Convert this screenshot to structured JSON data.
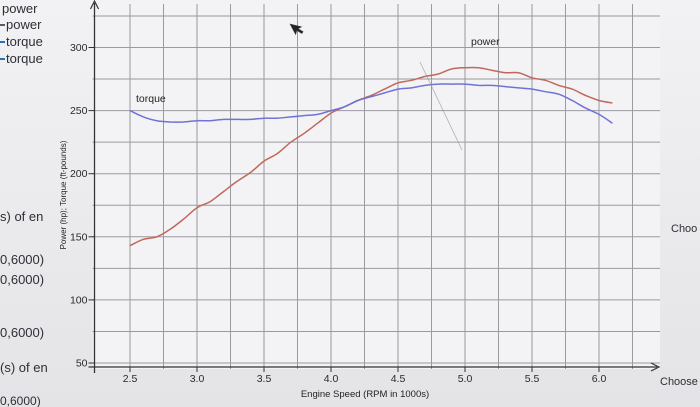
{
  "left_panel": {
    "items": [
      "power",
      "power",
      "torque",
      "torque",
      "s) of en",
      "0,6000)",
      "0,6000)",
      "0,6000)",
      "(s) of en",
      "0,6000)"
    ],
    "marker_colors": [
      "#555b66",
      "#2f6fb0",
      "#2f6fb0"
    ]
  },
  "right_panel": {
    "items": [
      "Choo",
      "Choose"
    ]
  },
  "cursor": {
    "icon": "mouse-pointer-icon"
  },
  "colors": {
    "background": "#e9e9eb",
    "plot_background": "#f3f3f5",
    "grid": "#9a9aa0",
    "power": "#c0685b",
    "torque": "#6f72d6",
    "axis": "#333333",
    "pen_mark": "#9a9a9a"
  },
  "chart_data": {
    "type": "line",
    "title": "",
    "xlabel": "Engine Speed (RPM in 1000s)",
    "ylabel": "Power (hp); Torque (ft-pounds)",
    "xlim": [
      2.25,
      6.25
    ],
    "ylim": [
      50,
      315
    ],
    "x_ticks": [
      "2.5",
      "3.0",
      "3.5",
      "4.0",
      "4.5",
      "5.0",
      "5.5",
      "6.0"
    ],
    "x_tick_values": [
      2.5,
      3.0,
      3.5,
      4.0,
      4.5,
      5.0,
      5.5,
      6.0
    ],
    "y_ticks": [
      "50",
      "100",
      "150",
      "200",
      "250",
      "300"
    ],
    "y_tick_values": [
      50,
      100,
      150,
      200,
      250,
      300
    ],
    "grid": true,
    "annotations": [
      {
        "text": "torque",
        "x": 2.5,
        "y": 257
      },
      {
        "text": "power",
        "x": 5.0,
        "y": 302
      }
    ],
    "series": [
      {
        "name": "power",
        "color": "#c0685b",
        "x": [
          2.5,
          2.6,
          2.7,
          2.8,
          2.9,
          3.0,
          3.1,
          3.2,
          3.3,
          3.4,
          3.5,
          3.6,
          3.7,
          3.8,
          3.9,
          4.0,
          4.1,
          4.2,
          4.3,
          4.4,
          4.5,
          4.6,
          4.7,
          4.8,
          4.9,
          5.0,
          5.1,
          5.2,
          5.3,
          5.4,
          5.5,
          5.6,
          5.7,
          5.8,
          5.9,
          6.0,
          6.1
        ],
        "values": [
          143,
          148,
          150,
          156,
          164,
          173,
          178,
          186,
          194,
          201,
          210,
          216,
          225,
          232,
          240,
          248,
          253,
          258,
          262,
          267,
          272,
          274,
          277,
          279,
          283,
          284,
          284,
          282,
          280,
          280,
          276,
          274,
          270,
          267,
          262,
          258,
          256
        ]
      },
      {
        "name": "torque",
        "color": "#6f72d6",
        "x": [
          2.5,
          2.6,
          2.7,
          2.8,
          2.9,
          3.0,
          3.1,
          3.2,
          3.3,
          3.4,
          3.5,
          3.6,
          3.7,
          3.8,
          3.9,
          4.0,
          4.1,
          4.2,
          4.3,
          4.4,
          4.5,
          4.6,
          4.7,
          4.8,
          4.9,
          5.0,
          5.1,
          5.2,
          5.3,
          5.4,
          5.5,
          5.6,
          5.7,
          5.8,
          5.9,
          6.0,
          6.1
        ],
        "values": [
          250,
          245,
          242,
          241,
          241,
          242,
          242,
          243,
          243,
          243,
          244,
          244,
          245,
          246,
          247,
          250,
          253,
          258,
          261,
          264,
          267,
          268,
          270,
          271,
          271,
          271,
          270,
          270,
          269,
          268,
          267,
          265,
          263,
          258,
          252,
          247,
          240
        ]
      }
    ]
  }
}
